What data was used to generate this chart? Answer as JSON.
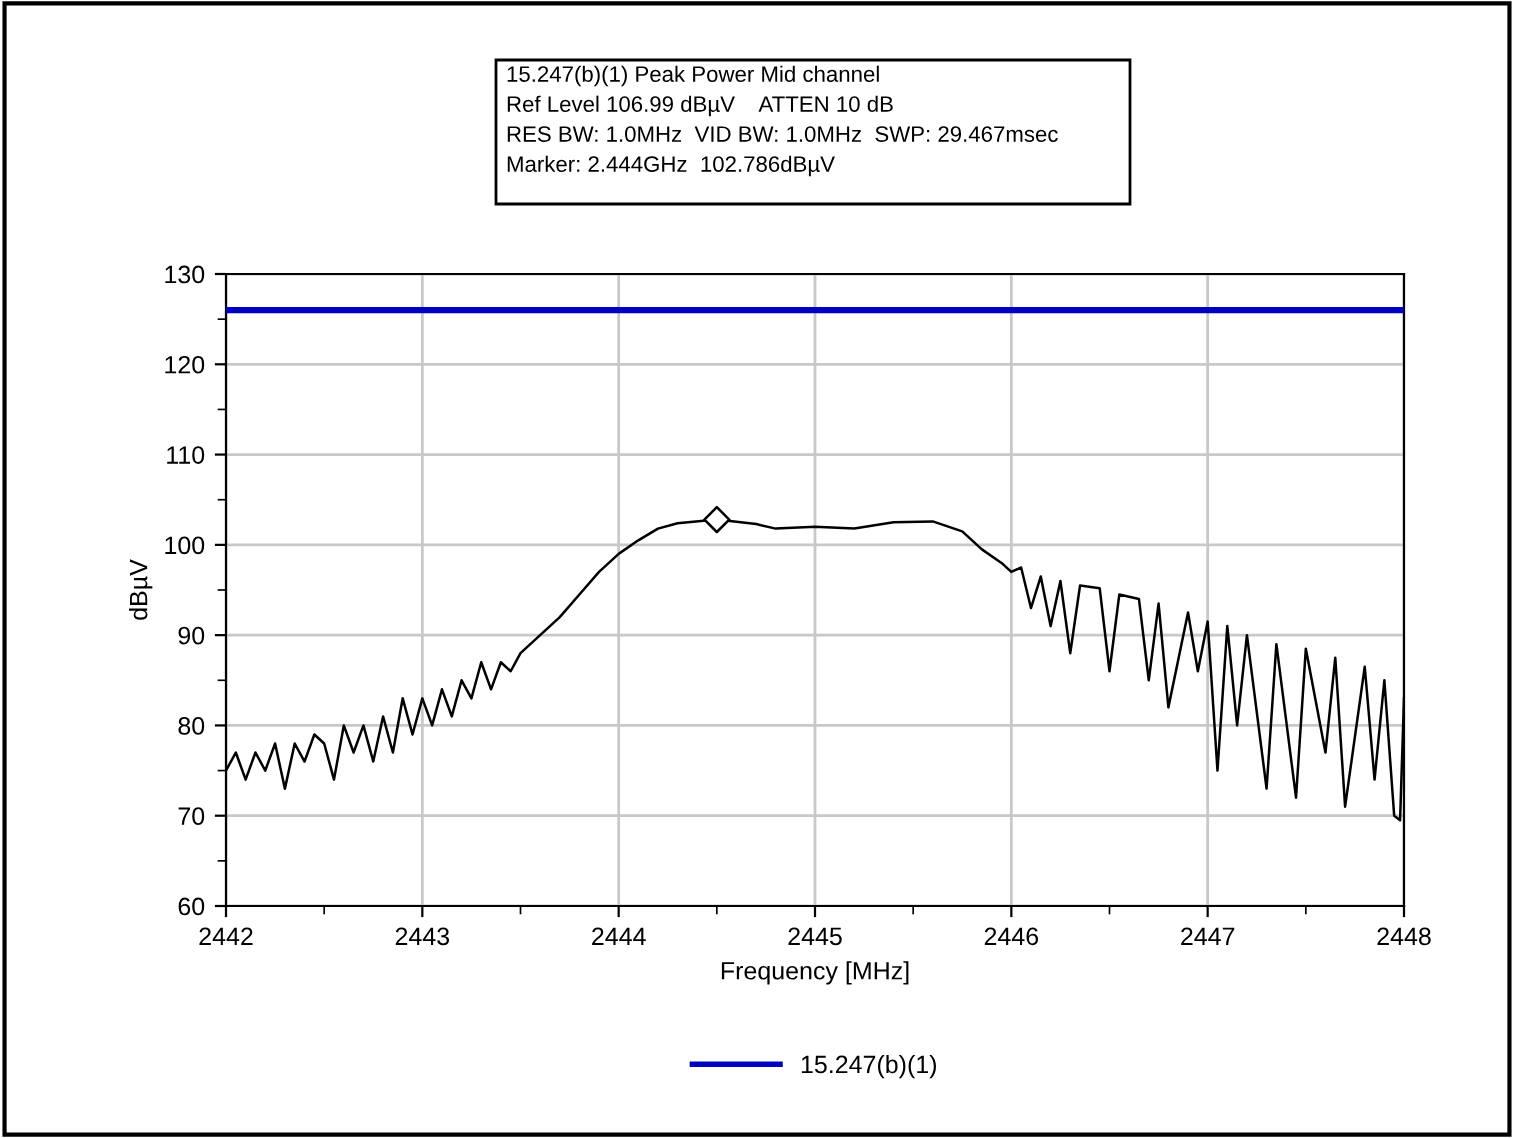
{
  "chart_data": {
    "type": "line",
    "title": "15.247(b)(1) Peak Power Mid channel",
    "annotations": [
      "Ref Level 106.99 dBµV    ATTEN 10 dB",
      "RES BW: 1.0MHz  VID BW: 1.0MHz  SWP: 29.467msec",
      "Marker: 2.444GHz  102.786dBµV"
    ],
    "xlabel": "Frequency [MHz]",
    "ylabel": "dBµV",
    "series": [
      {
        "color": "#000000",
        "x": [
          2442,
          2442.05,
          2442.1,
          2442.15,
          2442.2,
          2442.25,
          2442.3,
          2442.35,
          2442.4,
          2442.45,
          2442.5,
          2442.55,
          2442.6,
          2442.65,
          2442.7,
          2442.75,
          2442.8,
          2442.85,
          2442.9,
          2442.95,
          2443,
          2443.05,
          2443.1,
          2443.15,
          2443.2,
          2443.25,
          2443.3,
          2443.35,
          2443.4,
          2443.45,
          2443.5,
          2443.6,
          2443.7,
          2443.8,
          2443.9,
          2444,
          2444.1,
          2444.2,
          2444.3,
          2444.5,
          2444.7,
          2444.8,
          2445,
          2445.2,
          2445.4,
          2445.6,
          2445.75,
          2445.85,
          2445.95,
          2446,
          2446.05,
          2446.1,
          2446.15,
          2446.2,
          2446.25,
          2446.3,
          2446.35,
          2446.45,
          2446.5,
          2446.55,
          2446.65,
          2446.7,
          2446.75,
          2446.8,
          2446.9,
          2446.95,
          2447,
          2447.05,
          2447.1,
          2447.15,
          2447.2,
          2447.3,
          2447.35,
          2447.45,
          2447.5,
          2447.6,
          2447.65,
          2447.7,
          2447.8,
          2447.85,
          2447.9,
          2447.95,
          2447.98,
          2448
        ],
        "values": [
          75,
          77,
          74,
          77,
          75,
          78,
          73,
          78,
          76,
          79,
          78,
          74,
          80,
          77,
          80,
          76,
          81,
          77,
          83,
          79,
          83,
          80,
          84,
          81,
          85,
          83,
          87,
          84,
          87,
          86,
          88,
          90,
          92,
          94.5,
          97,
          99,
          100.5,
          101.8,
          102.4,
          102.8,
          102.3,
          101.8,
          102,
          101.8,
          102.5,
          102.6,
          101.5,
          99.5,
          98,
          97,
          97.5,
          93,
          96.5,
          91,
          96,
          88,
          95.5,
          95.2,
          86,
          94.5,
          94,
          85,
          93.5,
          82,
          92.5,
          86,
          91.5,
          75,
          91,
          80,
          90,
          73,
          89,
          72,
          88.5,
          77,
          87.5,
          71,
          86.5,
          74,
          85,
          70,
          69.5,
          83
        ]
      },
      {
        "name": "15.247(b)(1)",
        "color": "#0000c0",
        "x": [
          2442,
          2448
        ],
        "values": [
          126,
          126
        ]
      },
      {
        "type": "scatter",
        "marker": "diamond",
        "color": "#000000",
        "x": [
          2444.5
        ],
        "values": [
          102.8
        ]
      }
    ],
    "xlim": [
      2442,
      2448
    ],
    "xticks": [
      2442,
      2443,
      2444,
      2445,
      2446,
      2447,
      2448
    ],
    "ylim": [
      60,
      130
    ],
    "yticks": [
      60,
      70,
      80,
      90,
      100,
      110,
      120,
      130
    ],
    "grid": true,
    "legend": "bottom"
  }
}
